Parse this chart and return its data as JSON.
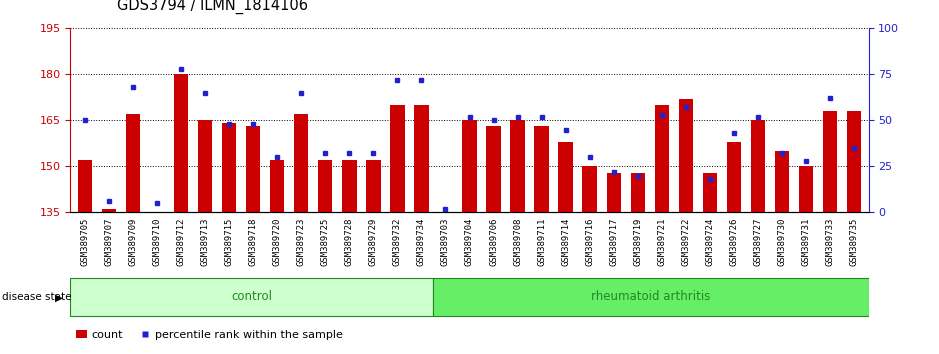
{
  "title": "GDS3794 / ILMN_1814106",
  "samples": [
    "GSM389705",
    "GSM389707",
    "GSM389709",
    "GSM389710",
    "GSM389712",
    "GSM389713",
    "GSM389715",
    "GSM389718",
    "GSM389720",
    "GSM389723",
    "GSM389725",
    "GSM389728",
    "GSM389729",
    "GSM389732",
    "GSM389734",
    "GSM389703",
    "GSM389704",
    "GSM389706",
    "GSM389708",
    "GSM389711",
    "GSM389714",
    "GSM389716",
    "GSM389717",
    "GSM389719",
    "GSM389721",
    "GSM389722",
    "GSM389724",
    "GSM389726",
    "GSM389727",
    "GSM389730",
    "GSM389731",
    "GSM389733",
    "GSM389735"
  ],
  "counts": [
    152,
    136,
    167,
    135,
    180,
    165,
    164,
    163,
    152,
    167,
    152,
    152,
    152,
    170,
    170,
    135,
    165,
    163,
    165,
    163,
    158,
    150,
    148,
    148,
    170,
    172,
    148,
    158,
    165,
    155,
    150,
    168,
    168
  ],
  "percentiles": [
    50,
    6,
    68,
    5,
    78,
    65,
    48,
    48,
    30,
    65,
    32,
    32,
    32,
    72,
    72,
    2,
    52,
    50,
    52,
    52,
    45,
    30,
    22,
    20,
    53,
    57,
    18,
    43,
    52,
    32,
    28,
    62,
    35
  ],
  "group_labels": [
    "control",
    "rheumatoid arthritis"
  ],
  "control_count": 15,
  "ra_count": 18,
  "ylim_left": [
    135,
    195
  ],
  "ylim_right": [
    0,
    100
  ],
  "yticks_left": [
    135,
    150,
    165,
    180,
    195
  ],
  "yticks_right": [
    0,
    25,
    50,
    75,
    100
  ],
  "bar_color": "#cc0000",
  "percentile_color": "#2222cc",
  "control_bg": "#ccffcc",
  "ra_bg": "#66ee66",
  "tick_label_bg": "#cccccc",
  "left_axis_color": "#cc0000",
  "right_axis_color": "#2222cc",
  "fig_width": 9.39,
  "fig_height": 3.54
}
